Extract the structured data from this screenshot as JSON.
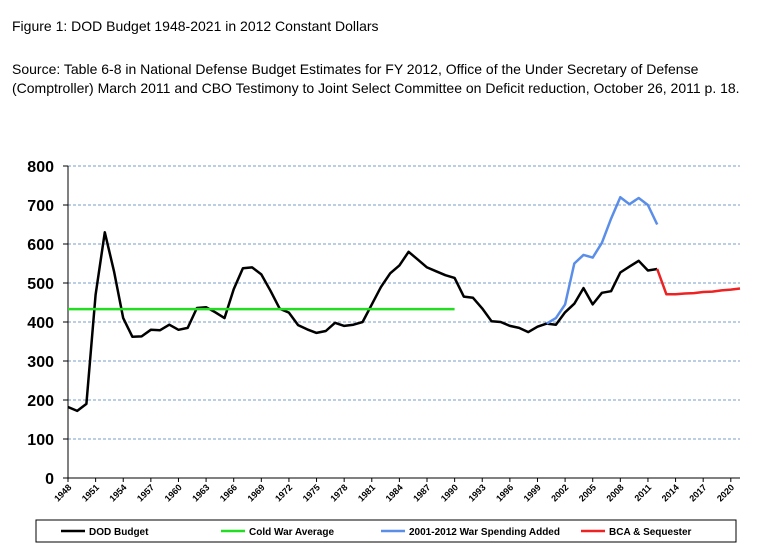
{
  "figure": {
    "title": "Figure 1: DOD Budget 1948-2021 in 2012 Constant  Dollars",
    "source": "Source: Table 6-8 in National Defense Budget Estimates for FY 2012, Office of the Under Secretary of Defense (Comptroller) March 2011 and CBO Testimony to Joint Select Committee on Deficit reduction, October 26, 2011 p. 18."
  },
  "chart_data": {
    "type": "line",
    "title": "",
    "xlabel": "",
    "ylabel": "",
    "ylim": [
      0,
      800
    ],
    "yticks": [
      "0",
      "100",
      "200",
      "300",
      "400",
      "500",
      "600",
      "700",
      "800"
    ],
    "xlim": [
      1948,
      2021
    ],
    "xticks": [
      "1948",
      "1951",
      "1954",
      "1957",
      "1960",
      "1963",
      "1966",
      "1969",
      "1972",
      "1975",
      "1978",
      "1981",
      "1984",
      "1987",
      "1990",
      "1993",
      "1996",
      "1999",
      "2002",
      "2005",
      "2008",
      "2011",
      "2014",
      "2017",
      "2020"
    ],
    "grid": "horizontal dashed",
    "legend_position": "bottom",
    "series": [
      {
        "name": "DOD Budget",
        "color": "#000000",
        "x": [
          1948,
          1949,
          1950,
          1951,
          1952,
          1953,
          1954,
          1955,
          1956,
          1957,
          1958,
          1959,
          1960,
          1961,
          1962,
          1963,
          1964,
          1965,
          1966,
          1967,
          1968,
          1969,
          1970,
          1971,
          1972,
          1973,
          1974,
          1975,
          1976,
          1977,
          1978,
          1979,
          1980,
          1981,
          1982,
          1983,
          1984,
          1985,
          1986,
          1987,
          1988,
          1989,
          1990,
          1991,
          1992,
          1993,
          1994,
          1995,
          1996,
          1997,
          1998,
          1999,
          2000,
          2001,
          2002,
          2003,
          2004,
          2005,
          2006,
          2007,
          2008,
          2009,
          2010,
          2011,
          2012
        ],
        "y": [
          182,
          172,
          190,
          470,
          630,
          530,
          410,
          362,
          363,
          380,
          379,
          393,
          380,
          385,
          436,
          438,
          425,
          410,
          484,
          538,
          540,
          522,
          480,
          434,
          424,
          392,
          381,
          372,
          377,
          398,
          390,
          393,
          400,
          445,
          490,
          525,
          545,
          580,
          560,
          540,
          530,
          520,
          513,
          465,
          462,
          435,
          402,
          400,
          390,
          385,
          374,
          388,
          396,
          393,
          425,
          447,
          487,
          445,
          475,
          479,
          527,
          542,
          557,
          532,
          536
        ]
      },
      {
        "name": "Cold War Average",
        "color": "#22dd22",
        "x": [
          1948,
          1990
        ],
        "y": [
          433,
          433
        ]
      },
      {
        "name": "2001-2012 War Spending Added",
        "color": "#5a8ee8",
        "x": [
          2000,
          2001,
          2002,
          2003,
          2004,
          2005,
          2006,
          2007,
          2008,
          2009,
          2010,
          2011,
          2012
        ],
        "y": [
          396,
          410,
          445,
          550,
          572,
          565,
          603,
          665,
          720,
          702,
          718,
          700,
          650
        ]
      },
      {
        "name": "BCA & Sequester",
        "color": "#ee2222",
        "x": [
          2012,
          2013,
          2014,
          2015,
          2016,
          2017,
          2018,
          2019,
          2020,
          2021
        ],
        "y": [
          536,
          471,
          471,
          473,
          474,
          477,
          478,
          481,
          483,
          486
        ]
      }
    ]
  }
}
